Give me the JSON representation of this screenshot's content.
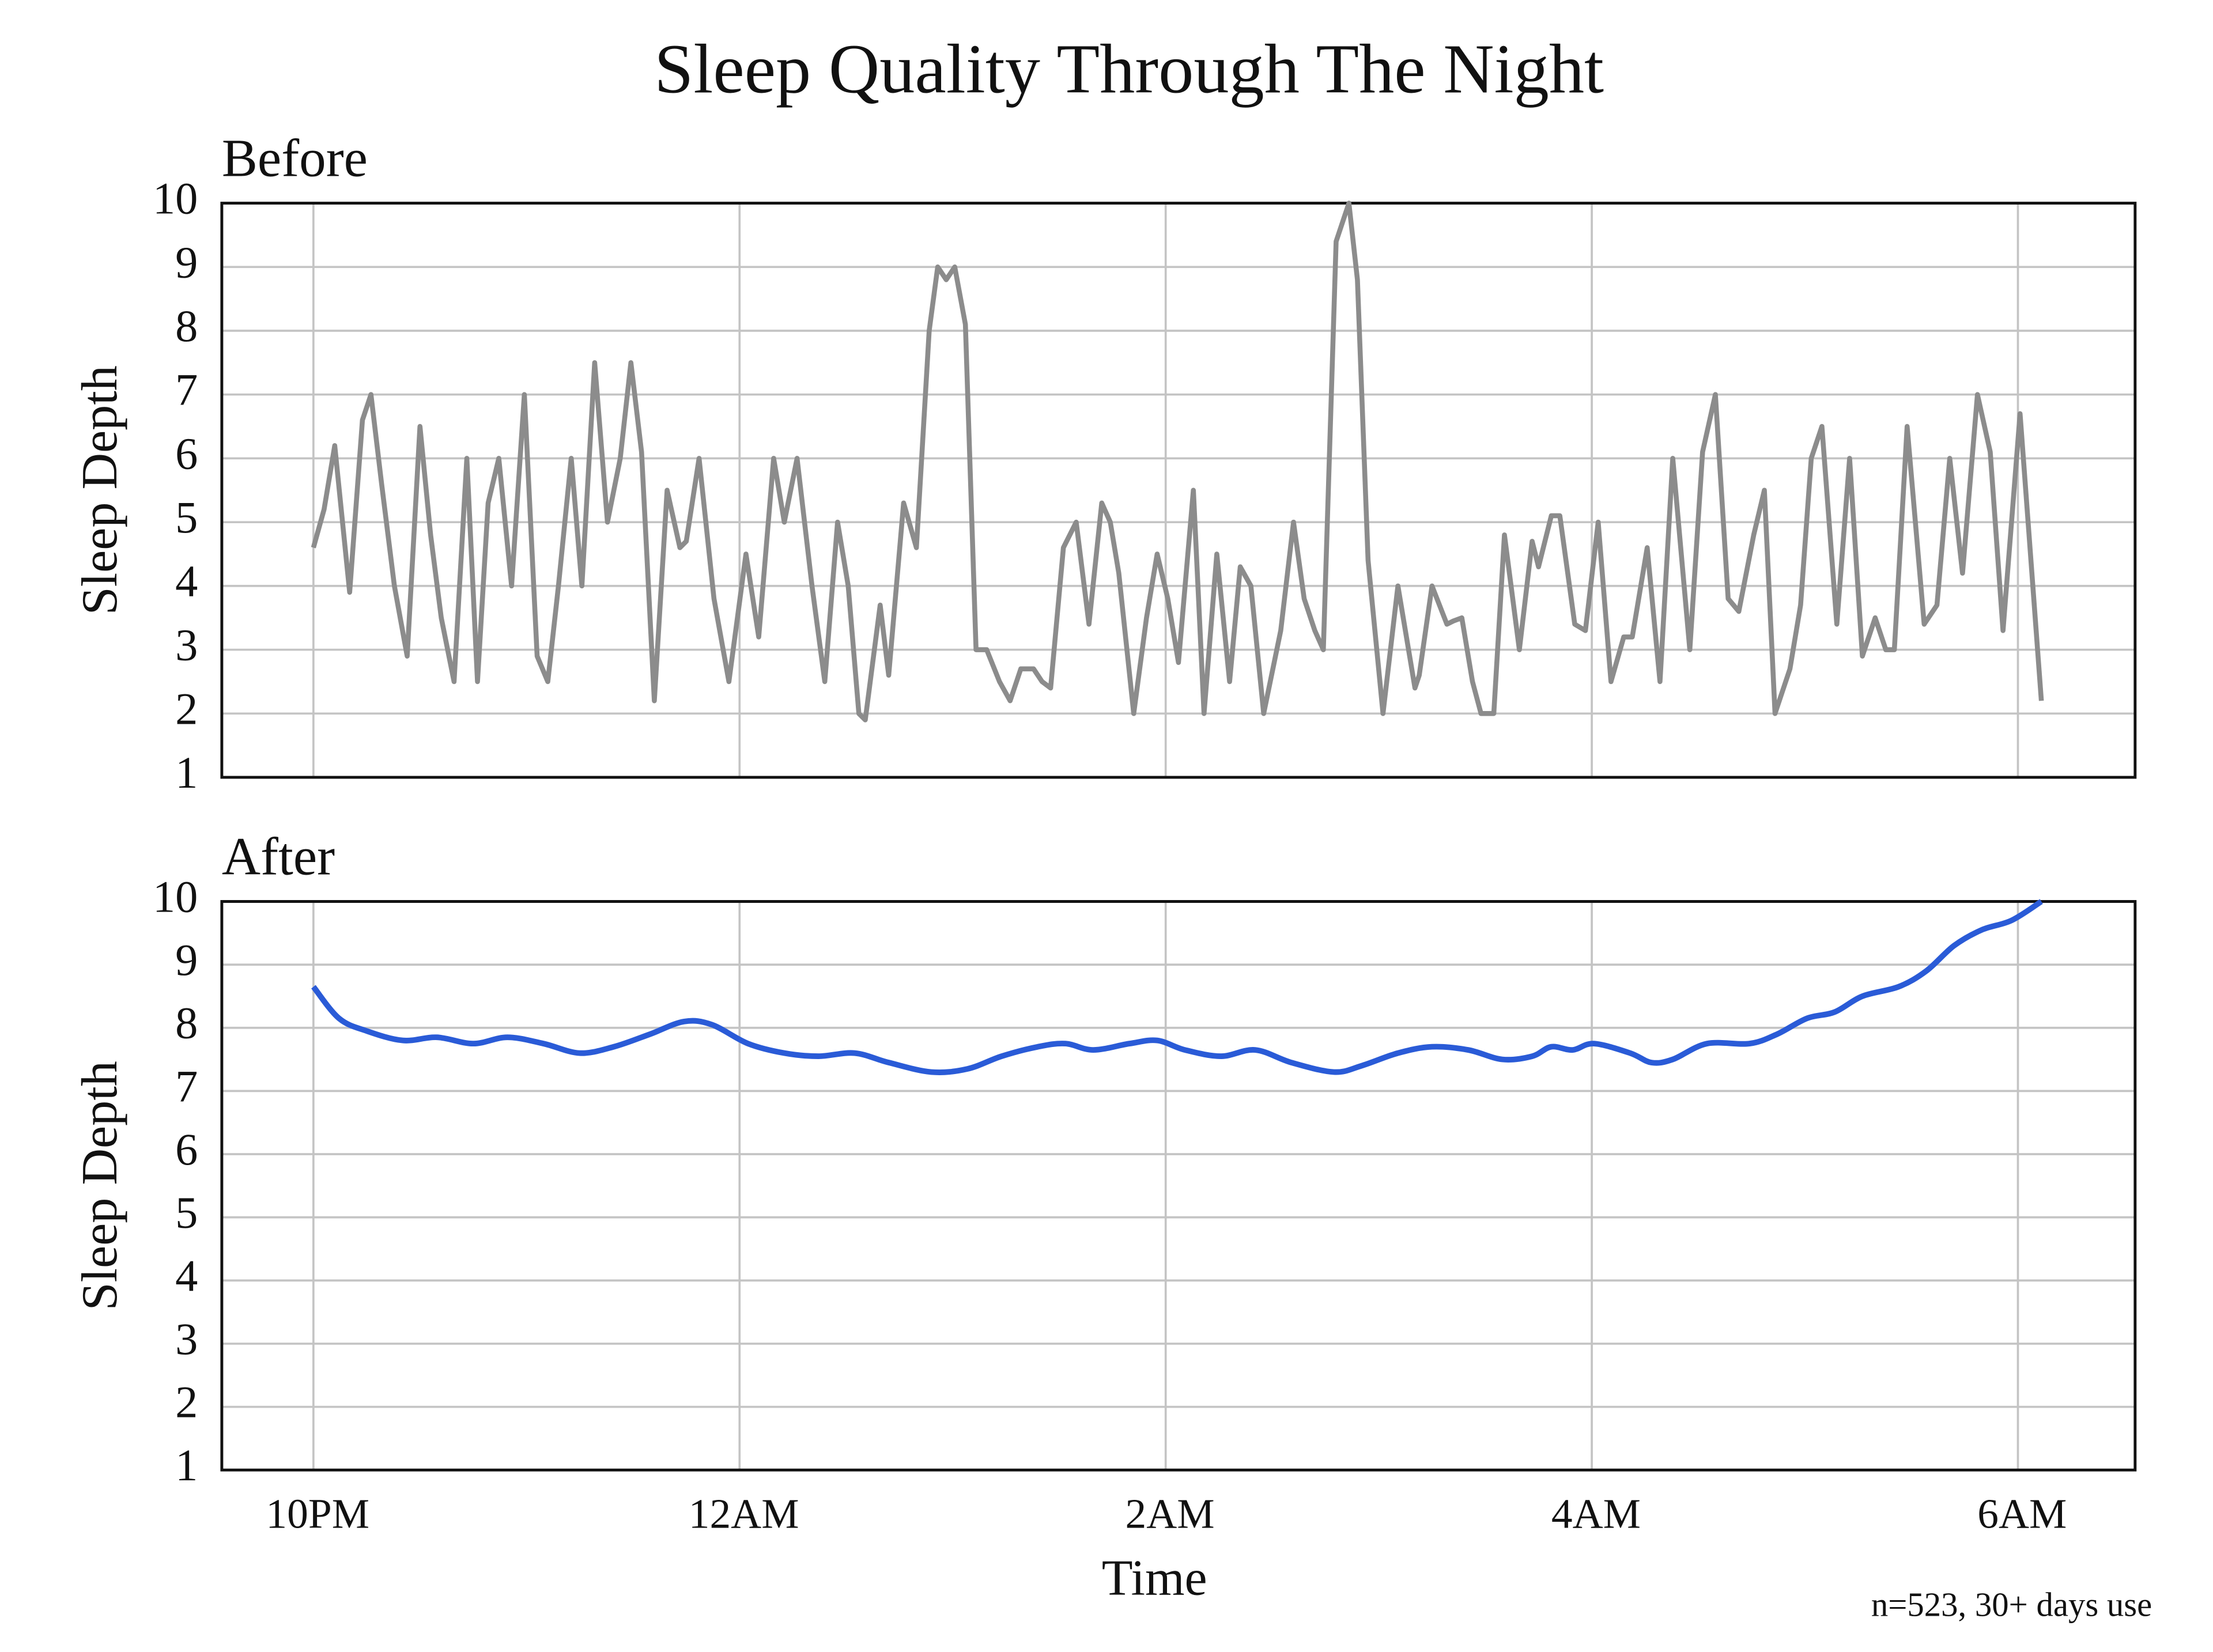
{
  "title": "Sleep Quality Through The Night",
  "note": "n=523, 30+ days use",
  "chart_data": [
    {
      "type": "line",
      "subtitle": "Before",
      "ylabel": "Sleep Depth",
      "color": "#8c8c8c",
      "grid": true,
      "xlim": [
        -0.43,
        8.55
      ],
      "ylim": [
        1,
        10
      ],
      "yticks": [
        1,
        2,
        3,
        4,
        5,
        6,
        7,
        8,
        9,
        10
      ],
      "x": [
        0,
        0.05,
        0.1,
        0.17,
        0.23,
        0.27,
        0.32,
        0.38,
        0.44,
        0.5,
        0.55,
        0.6,
        0.66,
        0.72,
        0.77,
        0.82,
        0.87,
        0.93,
        0.99,
        1.05,
        1.1,
        1.15,
        1.21,
        1.26,
        1.32,
        1.38,
        1.44,
        1.49,
        1.54,
        1.6,
        1.66,
        1.72,
        1.75,
        1.81,
        1.88,
        1.95,
        2.03,
        2.09,
        2.16,
        2.21,
        2.27,
        2.34,
        2.4,
        2.46,
        2.51,
        2.56,
        2.59,
        2.66,
        2.7,
        2.77,
        2.83,
        2.89,
        2.93,
        2.97,
        3.01,
        3.06,
        3.11,
        3.16,
        3.22,
        3.27,
        3.32,
        3.38,
        3.42,
        3.46,
        3.52,
        3.58,
        3.64,
        3.7,
        3.74,
        3.78,
        3.85,
        3.91,
        3.96,
        4.01,
        4.06,
        4.13,
        4.18,
        4.24,
        4.3,
        4.35,
        4.4,
        4.46,
        4.54,
        4.6,
        4.65,
        4.7,
        4.74,
        4.8,
        4.86,
        4.9,
        4.95,
        5.02,
        5.09,
        5.17,
        5.19,
        5.25,
        5.32,
        5.35,
        5.39,
        5.44,
        5.48,
        5.54,
        5.59,
        5.66,
        5.72,
        5.75,
        5.81,
        5.85,
        5.92,
        5.97,
        6.03,
        6.09,
        6.15,
        6.19,
        6.26,
        6.32,
        6.38,
        6.46,
        6.52,
        6.58,
        6.64,
        6.69,
        6.76,
        6.81,
        6.86,
        6.93,
        6.98,
        7.03,
        7.08,
        7.15,
        7.21,
        7.27,
        7.33,
        7.38,
        7.42,
        7.48,
        7.56,
        7.62,
        7.68,
        7.74,
        7.81,
        7.87,
        7.93,
        8.01,
        8.07,
        8.11
      ],
      "values": [
        4.6,
        5.2,
        6.2,
        3.9,
        6.6,
        7.0,
        5.6,
        4.0,
        2.9,
        6.5,
        4.8,
        3.5,
        2.5,
        6.0,
        2.5,
        5.3,
        6.0,
        4.0,
        7.0,
        2.9,
        2.5,
        4.0,
        6.0,
        4.0,
        7.5,
        5.0,
        6.0,
        7.5,
        6.1,
        2.2,
        5.5,
        4.6,
        4.7,
        6.0,
        3.8,
        2.5,
        4.5,
        3.2,
        6.0,
        5.0,
        6.0,
        4.0,
        2.5,
        5.0,
        4.0,
        2.0,
        1.9,
        3.7,
        2.6,
        5.3,
        4.6,
        8.0,
        9.0,
        8.8,
        9.0,
        8.1,
        3.0,
        3.0,
        2.5,
        2.2,
        2.7,
        2.7,
        2.5,
        2.4,
        4.6,
        5.0,
        3.4,
        5.3,
        5.0,
        4.2,
        2.0,
        3.5,
        4.5,
        3.8,
        2.8,
        5.5,
        2.0,
        4.5,
        2.5,
        4.3,
        4.0,
        2.0,
        3.3,
        5.0,
        3.8,
        3.3,
        3.0,
        9.4,
        10.0,
        8.8,
        4.4,
        2.0,
        4.0,
        2.4,
        2.6,
        4.0,
        3.4,
        3.45,
        3.5,
        2.5,
        2.0,
        2.0,
        4.8,
        3.0,
        4.7,
        4.3,
        5.1,
        5.1,
        3.4,
        3.3,
        5.0,
        2.5,
        3.2,
        3.2,
        4.6,
        2.5,
        6.0,
        3.0,
        6.1,
        7.0,
        3.8,
        3.6,
        4.8,
        5.5,
        2.0,
        2.7,
        3.7,
        6.0,
        6.5,
        3.4,
        6.0,
        2.9,
        3.5,
        3.0,
        3.0,
        6.5,
        3.4,
        3.7,
        6.0,
        4.2,
        7.0,
        6.1,
        3.3,
        6.7,
        4.0,
        2.2
      ]
    },
    {
      "type": "line",
      "subtitle": "After",
      "ylabel": "Sleep Depth",
      "xlabel": "Time",
      "color": "#2a5bd7",
      "grid": true,
      "smooth": true,
      "xlim": [
        -0.43,
        8.55
      ],
      "ylim": [
        1,
        10
      ],
      "yticks": [
        1,
        2,
        3,
        4,
        5,
        6,
        7,
        8,
        9,
        10
      ],
      "xticks": [
        {
          "value": 0,
          "label": "10PM"
        },
        {
          "value": 2,
          "label": "12AM"
        },
        {
          "value": 4,
          "label": "2AM"
        },
        {
          "value": 6,
          "label": "4AM"
        },
        {
          "value": 8,
          "label": "6AM"
        }
      ],
      "x": [
        0,
        0.12,
        0.25,
        0.42,
        0.58,
        0.75,
        0.91,
        1.08,
        1.25,
        1.41,
        1.58,
        1.74,
        1.87,
        2.04,
        2.21,
        2.37,
        2.54,
        2.7,
        2.9,
        3.07,
        3.23,
        3.4,
        3.53,
        3.66,
        3.83,
        3.96,
        4.09,
        4.26,
        4.42,
        4.59,
        4.79,
        4.92,
        5.09,
        5.25,
        5.42,
        5.58,
        5.72,
        5.81,
        5.91,
        6.01,
        6.18,
        6.28,
        6.38,
        6.54,
        6.74,
        6.87,
        7.01,
        7.14,
        7.27,
        7.44,
        7.57,
        7.7,
        7.83,
        7.97,
        8.11
      ],
      "values": [
        8.65,
        8.15,
        7.95,
        7.8,
        7.85,
        7.75,
        7.85,
        7.75,
        7.6,
        7.7,
        7.9,
        8.1,
        8.05,
        7.75,
        7.6,
        7.55,
        7.6,
        7.45,
        7.3,
        7.35,
        7.55,
        7.7,
        7.75,
        7.65,
        7.75,
        7.8,
        7.65,
        7.55,
        7.65,
        7.45,
        7.3,
        7.4,
        7.6,
        7.7,
        7.65,
        7.5,
        7.55,
        7.7,
        7.65,
        7.75,
        7.6,
        7.45,
        7.5,
        7.75,
        7.75,
        7.9,
        8.15,
        8.25,
        8.5,
        8.65,
        8.9,
        9.3,
        9.55,
        9.7,
        10.0
      ]
    }
  ]
}
